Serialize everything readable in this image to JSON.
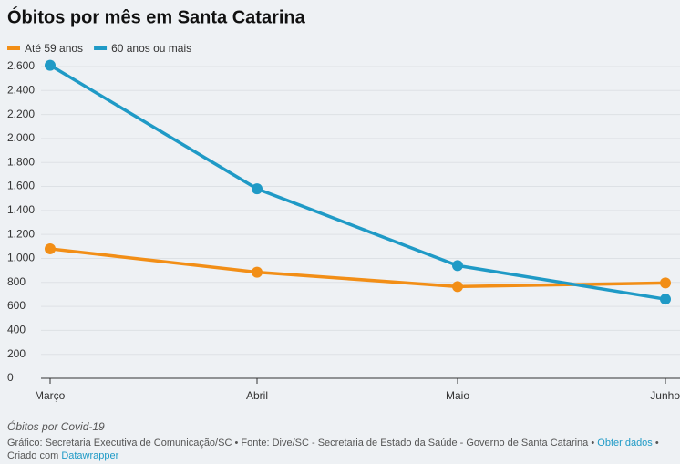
{
  "chart_data": {
    "type": "line",
    "title": "Óbitos por mês em Santa Catarina",
    "categories": [
      "Março",
      "Abril",
      "Maio",
      "Junho"
    ],
    "series": [
      {
        "name": "Até 59 anos",
        "color": "#f28e16",
        "values": [
          1080,
          885,
          765,
          795
        ]
      },
      {
        "name": "60 anos ou mais",
        "color": "#1f9ac6",
        "values": [
          2610,
          1580,
          940,
          660
        ]
      }
    ],
    "ylim": [
      0,
      2600
    ],
    "yticks": [
      0,
      200,
      400,
      600,
      800,
      {
        "value": 1000,
        "label": "1.000"
      },
      {
        "value": 1200,
        "label": "1.200"
      },
      {
        "value": 1400,
        "label": "1.400"
      },
      {
        "value": 1600,
        "label": "1.600"
      },
      {
        "value": 1800,
        "label": "1.800"
      },
      {
        "value": 2000,
        "label": "2.000"
      },
      {
        "value": 2200,
        "label": "2.200"
      },
      {
        "value": 2400,
        "label": "2.400"
      },
      {
        "value": 2600,
        "label": "2.600"
      }
    ],
    "grid": true,
    "legend": "top-left",
    "caption": "Óbitos por Covid-19",
    "credit": "Gráfico: Secretaria Executiva de Comunicação/SC • Fonte: Dive/SC - Secretaria de Estado da Saúde - Governo de Santa Catarina •",
    "get_data": "Obter dados",
    "created_with": "• Criado com",
    "tool": "Datawrapper"
  }
}
